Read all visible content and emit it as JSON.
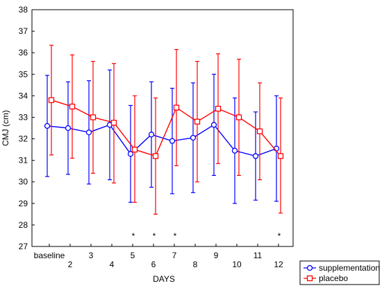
{
  "chart_data": {
    "type": "line",
    "xlabel": "DAYS",
    "ylabel": "CMJ (cm)",
    "categories": [
      "baseline",
      "2",
      "3",
      "4",
      "5",
      "6",
      "7",
      "8",
      "9",
      "10",
      "11",
      "12"
    ],
    "ylim": [
      27,
      38
    ],
    "yticks": [
      27,
      28,
      29,
      30,
      31,
      32,
      33,
      34,
      35,
      36,
      37,
      38
    ],
    "grid": false,
    "legend_position": "bottom-right",
    "series": [
      {
        "name": "supplementation",
        "color": "#0000ff",
        "marker": "circle",
        "values": [
          32.6,
          32.5,
          32.3,
          32.65,
          31.3,
          32.2,
          31.9,
          32.05,
          32.65,
          31.45,
          31.2,
          31.55
        ],
        "upper": [
          34.95,
          34.65,
          34.7,
          35.2,
          33.55,
          34.65,
          34.35,
          34.6,
          35.0,
          33.9,
          33.25,
          34.0
        ],
        "lower": [
          30.25,
          30.35,
          29.9,
          30.1,
          29.05,
          29.75,
          29.45,
          29.5,
          30.3,
          29.0,
          29.15,
          29.1
        ]
      },
      {
        "name": "placebo",
        "color": "#ff0000",
        "marker": "square",
        "values": [
          33.8,
          33.5,
          33.0,
          32.75,
          31.5,
          31.2,
          33.45,
          32.8,
          33.4,
          33.0,
          32.35,
          31.2
        ],
        "upper": [
          36.35,
          35.9,
          35.6,
          35.5,
          34.0,
          33.9,
          36.15,
          35.6,
          35.95,
          35.7,
          34.6,
          33.9
        ],
        "lower": [
          31.25,
          31.1,
          30.4,
          29.95,
          29.05,
          28.5,
          30.75,
          30.0,
          30.85,
          30.3,
          30.1,
          28.55
        ]
      }
    ],
    "annotations": [
      {
        "category": "5",
        "text": "*"
      },
      {
        "category": "6",
        "text": "*"
      },
      {
        "category": "7",
        "text": "*"
      },
      {
        "category": "12",
        "text": "*"
      }
    ]
  }
}
